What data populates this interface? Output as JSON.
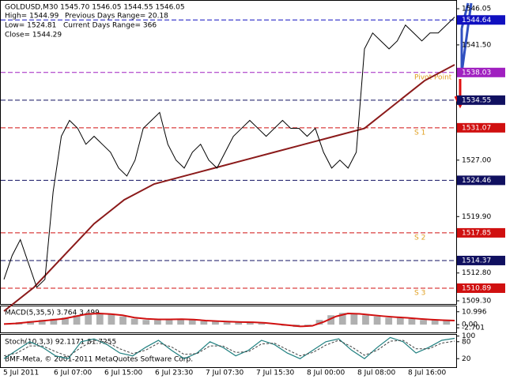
{
  "header": {
    "symbol": "GOLDUSD,M30  1545.70  1546.05  1544.55  1546.05",
    "high": "High= 1544.99",
    "low": "Low= 1524.81",
    "close": "Close= 1544.29",
    "prev_range": "Previous Days Range= 20.18",
    "curr_range": "Current Days Range= 366"
  },
  "price_panel": {
    "ylim": [
      1508.9,
      1547.15
    ],
    "ticks": [
      1546.05,
      {
        "value": 1541.5,
        "label": "1541.50"
      },
      {
        "value": 1527,
        "label": "1527.00"
      },
      {
        "value": 1519.9,
        "label": "1519.90"
      },
      {
        "value": 1512.8,
        "label": "1512.80"
      },
      {
        "value": 1509.3,
        "label": "1509.30"
      }
    ],
    "levels": [
      {
        "value": 1544.64,
        "color": "#1010c0"
      },
      {
        "value": 1538.03,
        "color": "#a020c0"
      },
      {
        "value": 1534.55,
        "color": "#101060"
      },
      {
        "value": 1531.07,
        "color": "#d01010"
      },
      {
        "value": 1524.46,
        "color": "#101060"
      },
      {
        "value": 1517.85,
        "color": "#d01010"
      },
      {
        "value": 1514.37,
        "color": "#101060"
      },
      {
        "value": 1510.89,
        "color": "#d01010"
      }
    ],
    "level_names": [
      "Pivot Point",
      "S 1",
      "S 2",
      "S 3"
    ],
    "close": [
      1512,
      1515,
      1517,
      1514,
      1511,
      1512,
      1523,
      1530,
      1532,
      1531,
      1529,
      1530,
      1529,
      1528,
      1526,
      1525,
      1527,
      1531,
      1532,
      1533,
      1529,
      1527,
      1526,
      1528,
      1529,
      1527,
      1526,
      1528,
      1530,
      1531,
      1532,
      1531,
      1530,
      1531,
      1532,
      1531,
      1531,
      1530,
      1531,
      1528,
      1526,
      1527,
      1526,
      1528,
      1541,
      1543,
      1542,
      1541,
      1542,
      1544,
      1543,
      1542,
      1543,
      1543,
      1544,
      1545
    ],
    "ma": [
      1508,
      1511,
      1515,
      1519,
      1522,
      1524,
      1525,
      1526,
      1527,
      1528,
      1529,
      1530,
      1531,
      1534,
      1537,
      1539
    ],
    "ma_color": "#8b1a1a",
    "line_color": "#000000"
  },
  "macd_panel": {
    "label": "MACD(5,35,5) 3.764 3.499",
    "ylim": [
      -6.62,
      15.56
    ],
    "ticks": [
      10.996,
      {
        "value": 0,
        "label": "0.00"
      },
      -2.701
    ],
    "hist": [
      1,
      2,
      3,
      4,
      5,
      6,
      8,
      10,
      10,
      9,
      7,
      5,
      4,
      4,
      5,
      5,
      4,
      3,
      3,
      2,
      2,
      2,
      1,
      0,
      -1,
      -2,
      -1,
      4,
      8,
      10,
      9,
      8,
      7,
      6,
      6,
      5,
      4,
      4,
      4
    ],
    "signal": [
      0.5,
      1,
      2,
      3,
      4,
      5,
      7,
      9,
      9.5,
      9,
      8,
      6,
      5,
      4.5,
      4.5,
      4.6,
      4.3,
      3.5,
      3,
      2.5,
      2.2,
      2,
      1.5,
      0.5,
      -0.5,
      -1.5,
      -1,
      2.5,
      7,
      9.5,
      9.2,
      8.2,
      7.2,
      6.4,
      5.8,
      5,
      4.3,
      3.8,
      3.5
    ]
  },
  "stoch_panel": {
    "label": "Stoch(10,3,3) 92.1171 81.7255",
    "ylim": [
      -10,
      104.5
    ],
    "ticks": [
      100,
      80,
      20
    ],
    "main": [
      20,
      50,
      80,
      60,
      30,
      20,
      80,
      90,
      70,
      40,
      30,
      60,
      85,
      50,
      20,
      40,
      80,
      60,
      30,
      50,
      85,
      70,
      40,
      20,
      50,
      80,
      90,
      50,
      20,
      60,
      95,
      80,
      40,
      60,
      85,
      92
    ],
    "signal": [
      30,
      40,
      65,
      65,
      45,
      28,
      60,
      85,
      78,
      55,
      38,
      50,
      75,
      62,
      35,
      38,
      65,
      65,
      42,
      45,
      72,
      75,
      52,
      30,
      42,
      68,
      85,
      62,
      32,
      50,
      82,
      85,
      55,
      55,
      75,
      82
    ]
  },
  "x_labels": [
    "5 Jul 2011",
    "6 Jul 07:00",
    "6 Jul 15:00",
    "6 Jul 23:30",
    "7 Jul 07:30",
    "7 Jul 15:30",
    "8 Jul 00:00",
    "8 Jul 08:00",
    "8 Jul 16:00"
  ],
  "copyright": "BMF-Meta, © 2001-2011 MetaQuotes Software Corp."
}
